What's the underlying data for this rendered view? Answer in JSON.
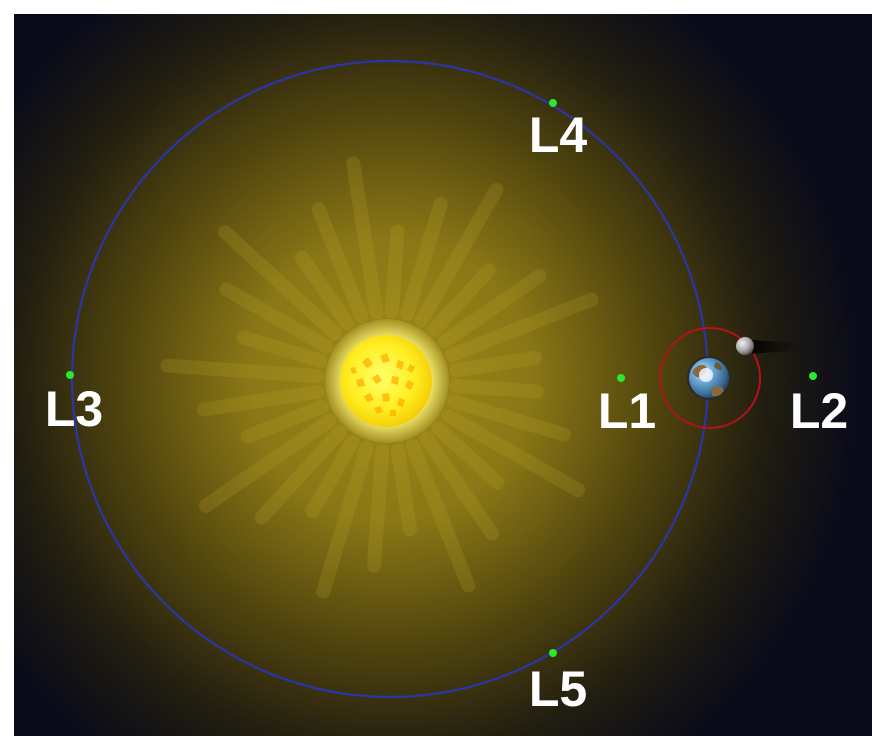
{
  "diagram": {
    "labels": {
      "l1": "L1",
      "l2": "L2",
      "l3": "L3",
      "l4": "L4",
      "l5": "L5"
    },
    "colors": {
      "background": "#0a0b1a",
      "frame": "#ffffff",
      "sun_glow": "#8c7a1a",
      "sun_core": "#ffff3a",
      "sun_flare": "#ffb000",
      "earth_orbit": "#2a36a8",
      "moon_orbit": "#b3121a",
      "lagrange_point": "#2ee82e",
      "label_text": "#ffffff",
      "earth_land": "#8a6a3c",
      "earth_water": "#3a7ab8",
      "moon": "#a6a6a6"
    },
    "icons": {
      "sun": "sun-icon",
      "earth": "earth-icon",
      "moon": "moon-icon"
    }
  }
}
